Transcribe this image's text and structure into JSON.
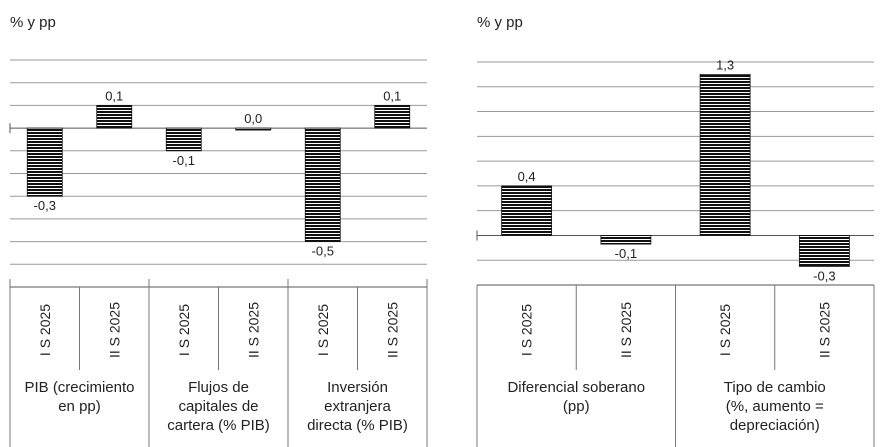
{
  "chart_data": [
    {
      "type": "bar",
      "unit_label": "% y pp",
      "ylim": [
        -0.7,
        0.3
      ],
      "ygrid_step": 0.1,
      "grid": true,
      "bar_fill": "horizontal-stripes",
      "groups": [
        {
          "label_lines": [
            "PIB (crecimiento",
            "en pp)"
          ],
          "bars": [
            {
              "period": "I S 2025",
              "value": -0.3,
              "label": "-0,3"
            },
            {
              "period": "II S 2025",
              "value": 0.1,
              "label": "0,1"
            }
          ]
        },
        {
          "label_lines": [
            "Flujos de",
            "capitales de",
            "cartera (% PIB)"
          ],
          "bars": [
            {
              "period": "I S 2025",
              "value": -0.1,
              "label": "-0,1"
            },
            {
              "period": "II S 2025",
              "value": 0.0,
              "label": "0,0"
            }
          ]
        },
        {
          "label_lines": [
            "Inversión",
            "extranjera",
            "directa (% PIB)"
          ],
          "bars": [
            {
              "period": "I S 2025",
              "value": -0.5,
              "label": "-0,5"
            },
            {
              "period": "II S 2025",
              "value": 0.1,
              "label": "0,1"
            }
          ]
        }
      ]
    },
    {
      "type": "bar",
      "unit_label": "% y pp",
      "ylim": [
        -0.4,
        1.4
      ],
      "ygrid_step": 0.2,
      "grid": true,
      "bar_fill": "horizontal-stripes",
      "groups": [
        {
          "label_lines": [
            "Diferencial soberano",
            "(pp)"
          ],
          "bars": [
            {
              "period": "I S 2025",
              "value": 0.4,
              "label": "0,4"
            },
            {
              "period": "II S 2025",
              "value": -0.07,
              "label": "-0,1"
            }
          ]
        },
        {
          "label_lines": [
            "Tipo de cambio",
            "(%, aumento =",
            "depreciación)"
          ],
          "bars": [
            {
              "period": "I S 2025",
              "value": 1.3,
              "label": "1,3"
            },
            {
              "period": "II S 2025",
              "value": -0.25,
              "label": "-0,3"
            }
          ]
        }
      ]
    }
  ]
}
